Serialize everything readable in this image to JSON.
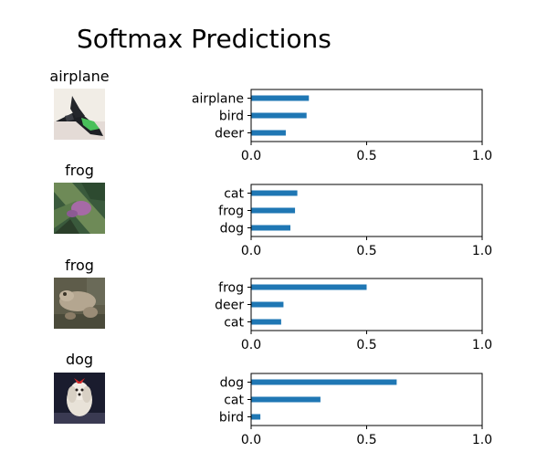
{
  "title": "Softmax Predictions",
  "chart_data": [
    {
      "type": "bar",
      "orientation": "horizontal",
      "image_label": "airplane",
      "image_icon": "airplane-thumbnail",
      "categories": [
        "airplane",
        "bird",
        "deer"
      ],
      "values": [
        0.25,
        0.24,
        0.15
      ],
      "xlim": [
        0,
        1.0
      ],
      "xticks": [
        "0.0",
        "0.5",
        "1.0"
      ],
      "bar_color": "#1f77b4"
    },
    {
      "type": "bar",
      "orientation": "horizontal",
      "image_label": "frog",
      "image_icon": "frog-thumbnail",
      "categories": [
        "cat",
        "frog",
        "dog"
      ],
      "values": [
        0.2,
        0.19,
        0.17
      ],
      "xlim": [
        0,
        1.0
      ],
      "xticks": [
        "0.0",
        "0.5",
        "1.0"
      ],
      "bar_color": "#1f77b4"
    },
    {
      "type": "bar",
      "orientation": "horizontal",
      "image_label": "frog",
      "image_icon": "frog-thumbnail",
      "categories": [
        "frog",
        "deer",
        "cat"
      ],
      "values": [
        0.5,
        0.14,
        0.13
      ],
      "xlim": [
        0,
        1.0
      ],
      "xticks": [
        "0.0",
        "0.5",
        "1.0"
      ],
      "bar_color": "#1f77b4"
    },
    {
      "type": "bar",
      "orientation": "horizontal",
      "image_label": "dog",
      "image_icon": "dog-thumbnail",
      "categories": [
        "dog",
        "cat",
        "bird"
      ],
      "values": [
        0.63,
        0.3,
        0.04
      ],
      "xlim": [
        0,
        1.0
      ],
      "xticks": [
        "0.0",
        "0.5",
        "1.0"
      ],
      "bar_color": "#1f77b4"
    }
  ]
}
